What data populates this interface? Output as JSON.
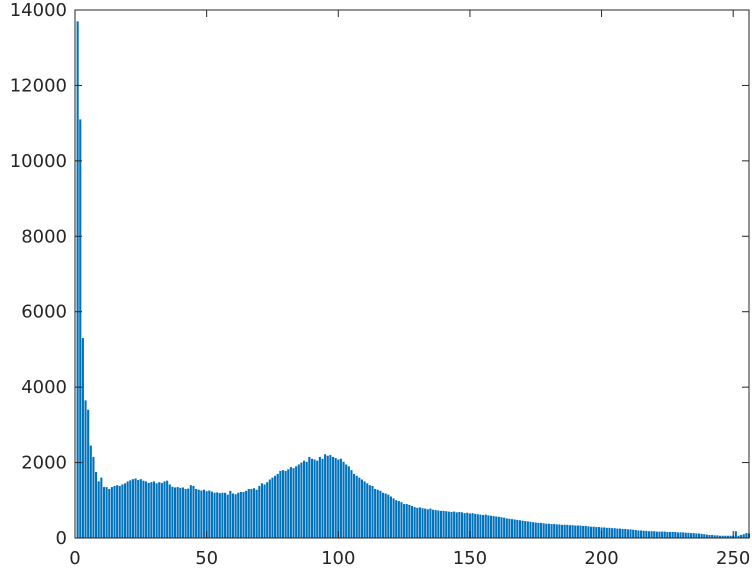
{
  "chart_data": {
    "type": "bar",
    "title": "",
    "xlabel": "",
    "ylabel": "",
    "xlim": [
      0,
      256
    ],
    "ylim": [
      0,
      14000
    ],
    "x_ticks": [
      0,
      50,
      100,
      150,
      200,
      250
    ],
    "y_ticks": [
      0,
      2000,
      4000,
      6000,
      8000,
      10000,
      12000,
      14000
    ],
    "grid": false,
    "bar_color": "#0072BD",
    "x_start": 1,
    "values": [
      13700,
      11100,
      5300,
      3650,
      3400,
      2450,
      2150,
      1750,
      1500,
      1600,
      1350,
      1350,
      1300,
      1350,
      1380,
      1400,
      1380,
      1420,
      1450,
      1500,
      1530,
      1560,
      1580,
      1540,
      1560,
      1520,
      1500,
      1460,
      1480,
      1500,
      1450,
      1480,
      1460,
      1500,
      1520,
      1420,
      1360,
      1340,
      1350,
      1330,
      1340,
      1300,
      1310,
      1400,
      1380,
      1300,
      1280,
      1260,
      1280,
      1240,
      1260,
      1230,
      1200,
      1210,
      1190,
      1200,
      1200,
      1150,
      1250,
      1180,
      1160,
      1200,
      1220,
      1220,
      1250,
      1300,
      1300,
      1320,
      1280,
      1380,
      1450,
      1420,
      1480,
      1550,
      1600,
      1650,
      1700,
      1780,
      1800,
      1780,
      1820,
      1880,
      1850,
      1900,
      1950,
      2000,
      2050,
      2020,
      2150,
      2100,
      2080,
      2050,
      2150,
      2100,
      2220,
      2180,
      2200,
      2150,
      2120,
      2080,
      2100,
      2020,
      1950,
      1900,
      1800,
      1700,
      1650,
      1600,
      1550,
      1500,
      1450,
      1400,
      1380,
      1300,
      1280,
      1250,
      1200,
      1180,
      1150,
      1100,
      1050,
      1000,
      980,
      950,
      900,
      900,
      880,
      850,
      820,
      800,
      810,
      790,
      780,
      760,
      780,
      750,
      740,
      730,
      720,
      720,
      710,
      700,
      690,
      700,
      680,
      690,
      680,
      660,
      670,
      650,
      660,
      640,
      630,
      620,
      610,
      620,
      600,
      590,
      580,
      570,
      560,
      550,
      540,
      520,
      510,
      500,
      490,
      480,
      470,
      460,
      450,
      440,
      430,
      420,
      410,
      400,
      400,
      390,
      380,
      380,
      370,
      370,
      360,
      360,
      350,
      350,
      350,
      340,
      340,
      330,
      330,
      330,
      320,
      320,
      310,
      300,
      300,
      290,
      290,
      280,
      280,
      270,
      270,
      260,
      260,
      250,
      250,
      240,
      240,
      230,
      230,
      220,
      210,
      200,
      200,
      190,
      190,
      180,
      180,
      180,
      170,
      170,
      170,
      170,
      160,
      160,
      160,
      160,
      150,
      150,
      150,
      140,
      140,
      130,
      130,
      120,
      120,
      110,
      100,
      90,
      80,
      80,
      70,
      70,
      60,
      60,
      60,
      60,
      60,
      60,
      180,
      60,
      80,
      100,
      130,
      120
    ]
  }
}
